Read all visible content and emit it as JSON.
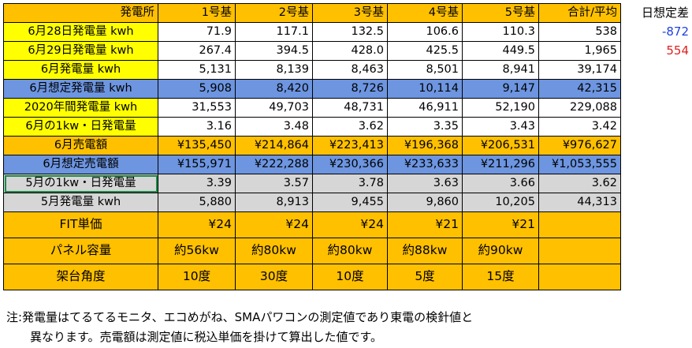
{
  "table": {
    "header": [
      "発電所",
      "1号基",
      "2号基",
      "3号基",
      "4号基",
      "5号基",
      "合計/平均"
    ],
    "rows": [
      {
        "label": "6月28日発電量 kwh",
        "style": "yellow",
        "values": [
          "71.9",
          "117.1",
          "132.5",
          "106.6",
          "110.3",
          "538"
        ]
      },
      {
        "label": "6月29日発電量 kwh",
        "style": "yellow",
        "values": [
          "267.4",
          "394.5",
          "428.0",
          "425.5",
          "449.5",
          "1,965"
        ]
      },
      {
        "label": "6月発電量 kwh",
        "style": "yellow",
        "values": [
          "5,131",
          "8,139",
          "8,463",
          "8,501",
          "8,941",
          "39,174"
        ]
      },
      {
        "label": "6月想定発電量 kwh",
        "style": "blue",
        "values": [
          "5,908",
          "8,420",
          "8,726",
          "10,114",
          "9,147",
          "42,315"
        ]
      },
      {
        "label": "2020年間発電量 kwh",
        "style": "yellow",
        "values": [
          "31,553",
          "49,703",
          "48,731",
          "46,911",
          "52,190",
          "229,088"
        ]
      },
      {
        "label": "6月の1kw・日発電量",
        "style": "yellow",
        "values": [
          "3.16",
          "3.48",
          "3.62",
          "3.35",
          "3.43",
          "3.42"
        ]
      },
      {
        "label": "6月売電額",
        "style": "orange",
        "values": [
          "¥135,450",
          "¥214,864",
          "¥223,413",
          "¥196,368",
          "¥206,531",
          "¥976,627"
        ]
      },
      {
        "label": "6月想定売電額",
        "style": "blue",
        "values": [
          "¥155,971",
          "¥222,288",
          "¥230,366",
          "¥233,633",
          "¥211,296",
          "¥1,053,555"
        ]
      },
      {
        "label": "5月の1kw・日発電量",
        "style": "grey",
        "values": [
          "3.39",
          "3.57",
          "3.78",
          "3.63",
          "3.66",
          "3.62"
        ],
        "selected": true
      },
      {
        "label": "5月発電量 kwh",
        "style": "grey",
        "values": [
          "5,880",
          "8,913",
          "9,455",
          "9,860",
          "10,205",
          "44,313"
        ]
      },
      {
        "label": "FIT単価",
        "style": "orange",
        "tall": true,
        "values": [
          "¥24",
          "¥24",
          "¥24",
          "¥21",
          "¥21",
          ""
        ]
      },
      {
        "label": "パネル容量",
        "style": "orange",
        "tall": true,
        "center": true,
        "values": [
          "約56kw",
          "約80kw",
          "約80kw",
          "約88kw",
          "約90kw",
          ""
        ]
      },
      {
        "label": "架台角度",
        "style": "orange",
        "tall": true,
        "center": true,
        "values": [
          "10度",
          "30度",
          "10度",
          "5度",
          "15度",
          ""
        ]
      }
    ]
  },
  "side": {
    "title": "日想定差",
    "negative_value": "-872",
    "positive_value": "554",
    "negative_color": "#1f3fe0",
    "positive_color": "#e02020"
  },
  "notes": {
    "line1": "注:発電量はてるてるモニタ、エコめがね、SMAパワコンの測定値であり東電の検針値と",
    "line2": "異なります。売電額は測定値に税込単価を掛けて算出した値です。"
  },
  "colors": {
    "yellow": "#ffff00",
    "orange": "#ffc000",
    "blue": "#6d95e0",
    "grey": "#d6d6d6",
    "selection": "#1e8a4a"
  }
}
